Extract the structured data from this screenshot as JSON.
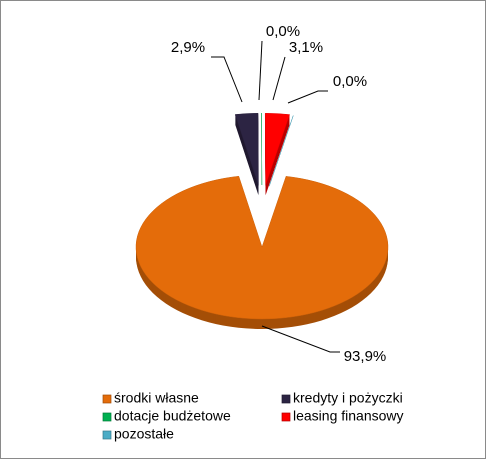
{
  "chart_data": {
    "type": "pie",
    "categories": [
      "środki własne",
      "kredyty i pożyczki",
      "dotacje budżetowe",
      "leasing finansowy",
      "pozostałe"
    ],
    "values": [
      93.9,
      2.9,
      0.0,
      3.1,
      0.0
    ],
    "value_labels": [
      "93,9%",
      "2,9%",
      "0,0%",
      "3,1%",
      "0,0%"
    ],
    "colors": [
      "#e46c0a",
      "#2c2443",
      "#00b050",
      "#ff0000",
      "#4bacc6"
    ],
    "legend": "bottom"
  }
}
